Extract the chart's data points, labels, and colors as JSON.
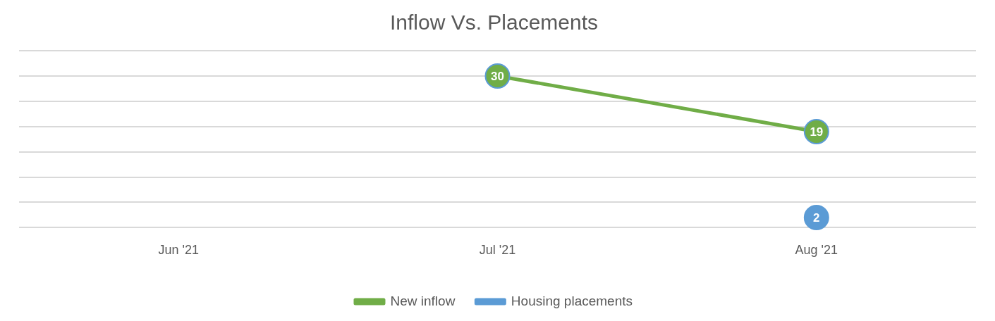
{
  "chart_data": {
    "type": "line",
    "title": "Inflow Vs. Placements",
    "categories": [
      "Jun '21",
      "Jul '21",
      "Aug '21"
    ],
    "series": [
      {
        "name": "New inflow",
        "color": "#70ad47",
        "values": [
          null,
          30,
          19
        ]
      },
      {
        "name": "Housing placements",
        "color": "#5b9bd5",
        "values": [
          null,
          null,
          2
        ]
      }
    ],
    "ylim": [
      0,
      35
    ],
    "yticks": [
      {
        "value": 0,
        "label": null
      },
      {
        "value": 5,
        "label": null
      },
      {
        "value": 10,
        "label": null
      },
      {
        "value": 15,
        "label": null
      },
      {
        "value": 20,
        "label": null
      },
      {
        "value": 25,
        "label": null
      },
      {
        "value": 30,
        "label": null
      },
      {
        "value": 35,
        "label": null
      }
    ],
    "tick_labels": "x",
    "grid": "y",
    "legend": "bottom",
    "marker": "circle",
    "line_style": "solid",
    "data_labels": true
  }
}
